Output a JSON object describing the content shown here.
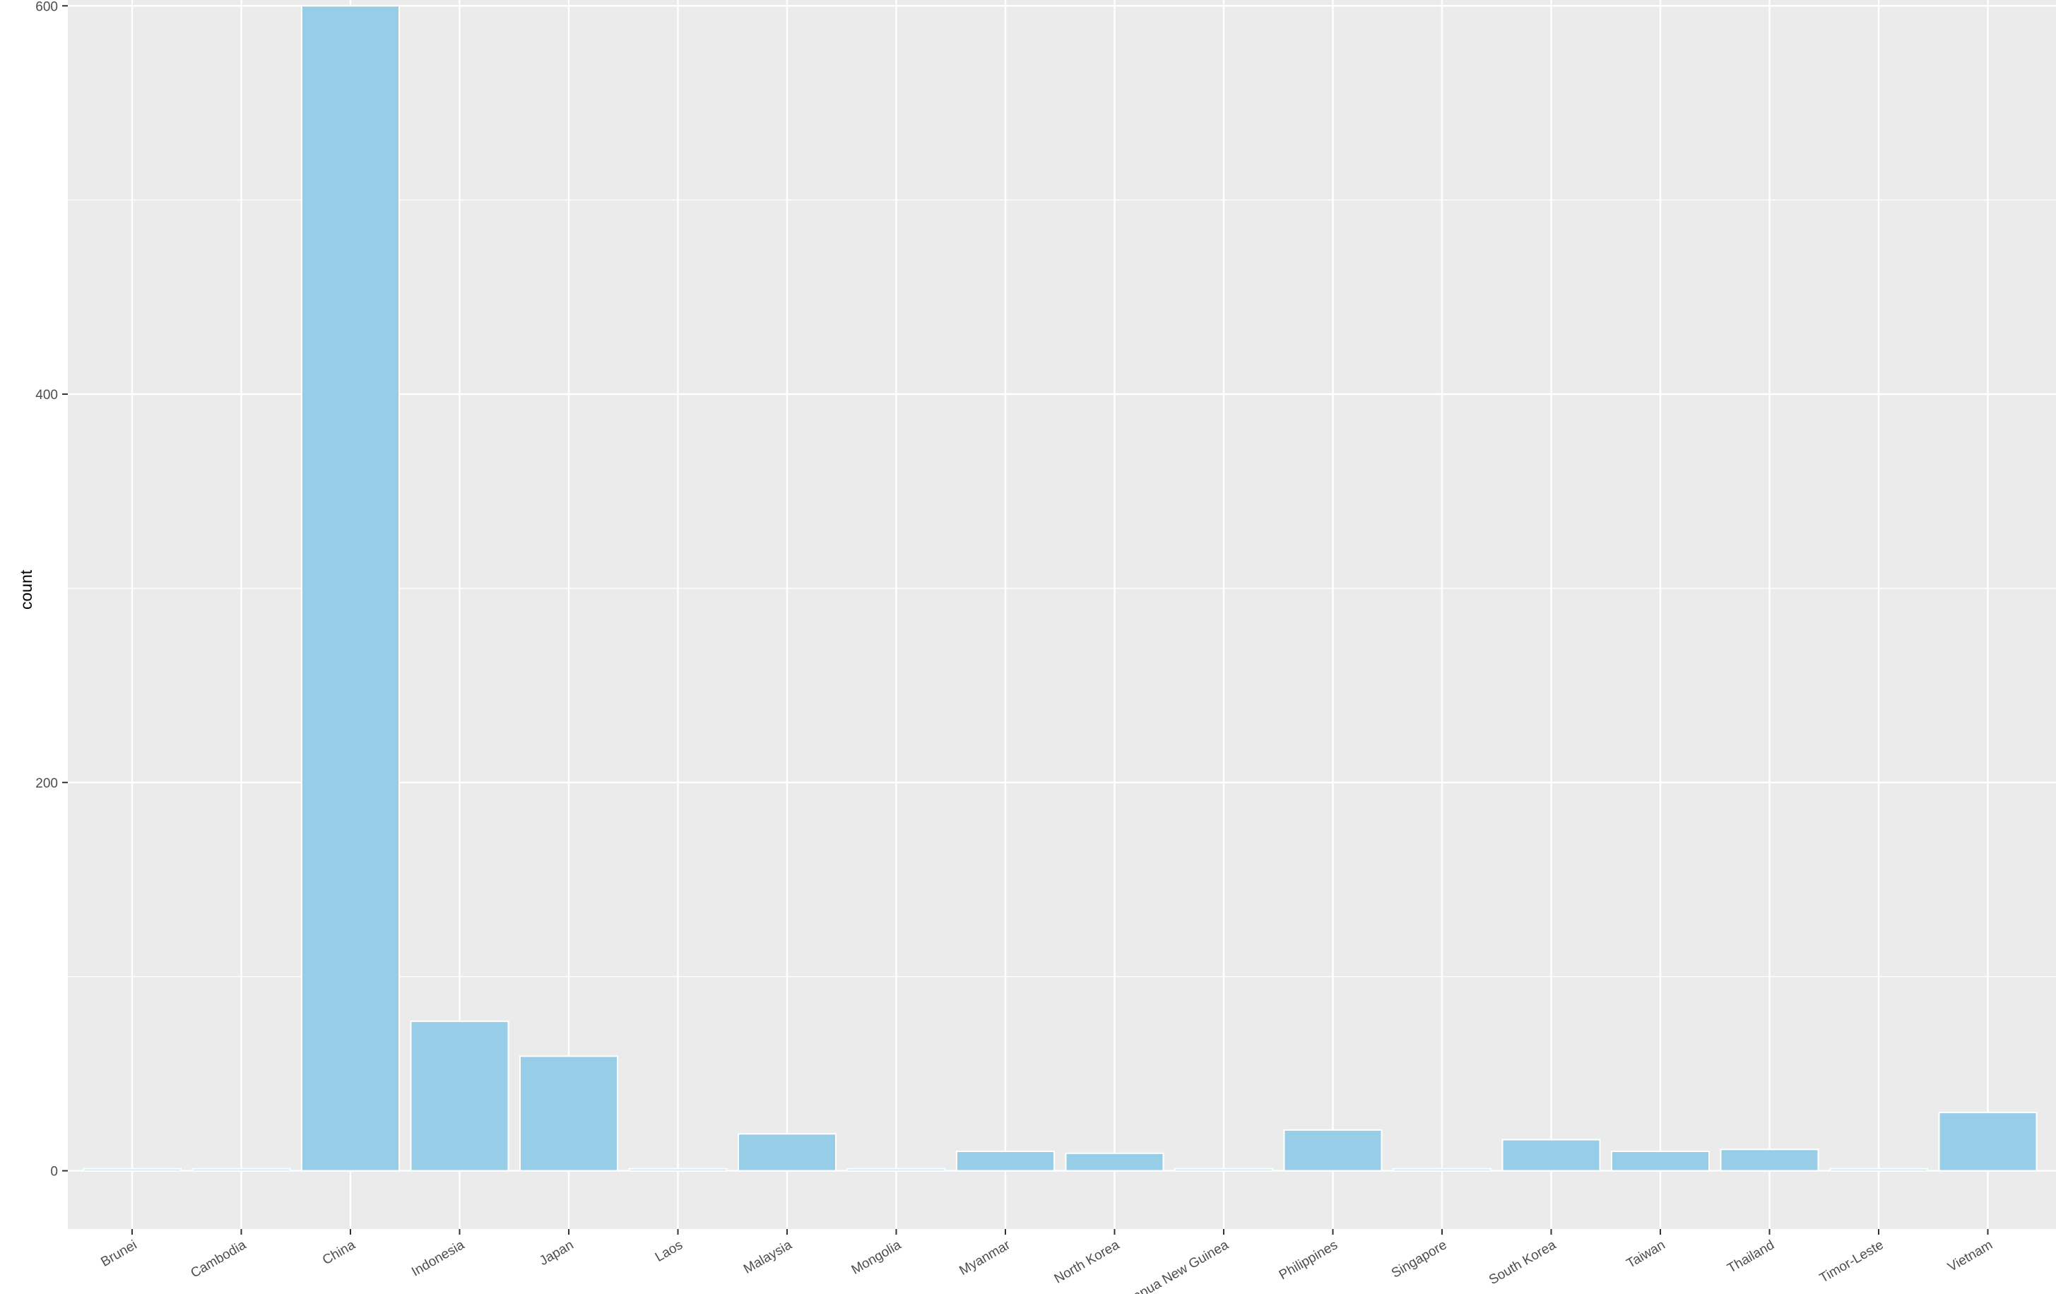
{
  "chart_data": {
    "type": "bar",
    "title": "",
    "xlabel": "",
    "ylabel": "count",
    "categories": [
      "Brunei",
      "Cambodia",
      "China",
      "Indonesia",
      "Japan",
      "Laos",
      "Malaysia",
      "Mongolia",
      "Myanmar",
      "North Korea",
      "Papua New Guinea",
      "Philippines",
      "Singapore",
      "South Korea",
      "Taiwan",
      "Thailand",
      "Timor-Leste",
      "Vietnam"
    ],
    "values": [
      1,
      1,
      600,
      77,
      59,
      1,
      19,
      1,
      10,
      9,
      1,
      21,
      1,
      16,
      10,
      11,
      1,
      30
    ],
    "ylim": [
      -30,
      603
    ],
    "yticks": [
      0,
      200,
      400,
      600
    ],
    "grid": true,
    "colors": {
      "bar_fill": "#98cde8",
      "bar_stroke": "#ffffff",
      "panel": "#ebebeb",
      "grid": "#ffffff"
    }
  }
}
